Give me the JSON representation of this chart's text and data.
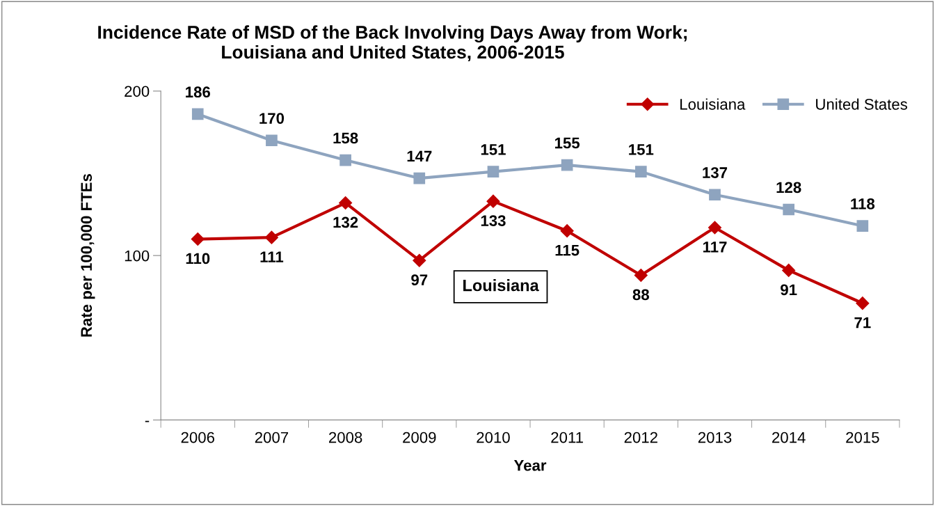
{
  "chart_data": {
    "type": "line",
    "title": "Incidence Rate of MSD of the Back Involving Days Away from Work;\nLouisiana and United States, 2006-2015",
    "xlabel": "Year",
    "ylabel": "Rate per 100,000 FTEs",
    "categories": [
      "2006",
      "2007",
      "2008",
      "2009",
      "2010",
      "2011",
      "2012",
      "2013",
      "2014",
      "2015"
    ],
    "series": [
      {
        "name": "Louisiana",
        "color": "#c00000",
        "marker": "diamond",
        "values": [
          110,
          111,
          132,
          97,
          133,
          115,
          88,
          117,
          91,
          71
        ]
      },
      {
        "name": "United States",
        "color": "#8ea4bf",
        "marker": "square",
        "values": [
          186,
          170,
          158,
          147,
          151,
          155,
          151,
          137,
          128,
          118
        ]
      }
    ],
    "ylim": [
      0,
      200
    ],
    "yticks": [
      {
        "value": 0,
        "label": "-"
      },
      100,
      200
    ],
    "annotations": [
      "Louisiana"
    ],
    "data_labels": true,
    "grid": false,
    "legend": "top right",
    "line_style": "solid"
  }
}
